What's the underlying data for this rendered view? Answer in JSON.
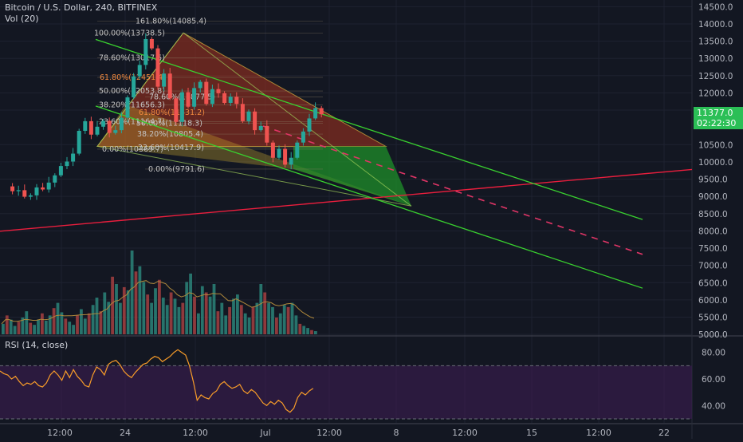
{
  "header": {
    "title": "Bitcoin / U.S. Dollar, 240, BITFINEX",
    "volume_label": "Vol (20)",
    "rsi_label": "RSI (14, close)"
  },
  "price_tags": {
    "last_price": "11377.0",
    "countdown": "02:22:30"
  },
  "colors": {
    "background": "#131722",
    "up": "#26a69a",
    "down": "#ef5350",
    "channel": "#39d12f",
    "trend": "#e91e3d",
    "fib_text": "#f0883e",
    "rsi_line": "#f89c29",
    "rsi_band": "#3c1d52"
  },
  "chart_data": [
    {
      "type": "candlestick",
      "title": "Bitcoin / U.S. Dollar, 240, BITFINEX",
      "y_axis_labels": [
        "14500.0",
        "14000.0",
        "13500.0",
        "13000.0",
        "12500.0",
        "12000.0",
        "11500.0",
        "10500.0",
        "10000.0",
        "9500.0",
        "9000.0",
        "8500.0",
        "8000.0",
        "7500.0",
        "7000.0",
        "6500.0",
        "6000.0",
        "5500.0",
        "5000.0"
      ],
      "x_axis_labels": [
        "12:00",
        "24",
        "12:00",
        "Jul",
        "12:00",
        "8",
        "12:00",
        "15",
        "12:00",
        "22"
      ],
      "ylim": [
        4980,
        14600
      ],
      "close_path": [
        9290,
        9150,
        9180,
        8990,
        9030,
        9260,
        9200,
        9400,
        9610,
        9880,
        10010,
        10240,
        10900,
        11180,
        10790,
        11020,
        11190,
        10840,
        10920,
        11280,
        11870,
        12480,
        12810,
        13560,
        13290,
        12180,
        12560,
        11840,
        11160,
        12020,
        11600,
        12140,
        12320,
        11680,
        12110,
        11990,
        11710,
        11890,
        11680,
        11180,
        11460,
        10920,
        11040,
        10560,
        10120,
        10380,
        9920,
        10120,
        10560,
        10880,
        11260,
        11560,
        11380
      ],
      "channel_upper": {
        "from": [
          0,
          13550
        ],
        "to": [
          48,
          8330
        ]
      },
      "channel_lower": {
        "from": [
          0,
          11620
        ],
        "to": [
          48,
          6340
        ]
      },
      "trend_line": {
        "from": [
          0,
          7990
        ],
        "to": [
          52,
          9780
        ]
      },
      "projection": {
        "from": [
          18.5,
          11040
        ],
        "to": [
          48,
          7320
        ]
      },
      "fib_upper": [
        {
          "label": "161.80%(14085.4)",
          "value": 14085.4
        },
        {
          "label": "100.00%(13738.5)",
          "value": 13738.5
        },
        {
          "label": "78.60%(13017.5)",
          "value": 13017.5
        },
        {
          "label": "61.80%(12451.4)",
          "value": 12451.4
        },
        {
          "label": "50.00%(12053.8)",
          "value": 12053.8
        },
        {
          "label": "38.20%(11656.3)",
          "value": 11656.3
        },
        {
          "label": "23.60%(11164.7)",
          "value": 11164.7
        },
        {
          "label": "0.00%(10369.7)",
          "value": 10369.7
        }
      ],
      "fib_lower": [
        {
          "label": "78.60%(11877.5)",
          "value": 11877.5
        },
        {
          "label": "61.80%(11431.2)",
          "value": 11431.2
        },
        {
          "label": "50.00%(11118.3)",
          "value": 11118.3
        },
        {
          "label": "38.20%(10805.4)",
          "value": 10805.4
        },
        {
          "label": "23.60%(10417.9)",
          "value": 10417.9
        },
        {
          "label": "0.00%(9791.6)",
          "value": 9791.6
        }
      ]
    },
    {
      "type": "bar",
      "title": "Vol (20)",
      "values": [
        10,
        18,
        14,
        8,
        12,
        16,
        22,
        11,
        9,
        14,
        20,
        13,
        18,
        25,
        30,
        21,
        15,
        12,
        9,
        18,
        24,
        15,
        20,
        28,
        35,
        22,
        40,
        31,
        55,
        48,
        30,
        45,
        42,
        80,
        60,
        65,
        50,
        38,
        30,
        44,
        52,
        35,
        28,
        40,
        34,
        26,
        30,
        50,
        58,
        36,
        20,
        46,
        40,
        36,
        48,
        22,
        30,
        18,
        26,
        34,
        38,
        28,
        20,
        16,
        26,
        30,
        48,
        40,
        30,
        26,
        16,
        20,
        28,
        26,
        30,
        18,
        10,
        8,
        6,
        4,
        3
      ],
      "x_axis_labels": [
        "12:00",
        "24",
        "12:00",
        "Jul",
        "12:00",
        "8",
        "12:00",
        "15",
        "12:00",
        "22"
      ]
    },
    {
      "type": "line",
      "title": "RSI (14, close)",
      "y_axis_labels": [
        "80.00",
        "60.00",
        "40.00"
      ],
      "ylim": [
        27,
        93
      ],
      "bands": [
        30,
        70
      ],
      "values": [
        66,
        64,
        63,
        60,
        62,
        58,
        55,
        57,
        56,
        58,
        55,
        54,
        57,
        63,
        66,
        63,
        59,
        66,
        61,
        67,
        62,
        59,
        55,
        54,
        63,
        69,
        67,
        63,
        71,
        73,
        74,
        71,
        66,
        63,
        61,
        65,
        68,
        71,
        72,
        75,
        77,
        76,
        73,
        75,
        77,
        80,
        82,
        80,
        78,
        70,
        58,
        44,
        48,
        46,
        45,
        49,
        51,
        56,
        58,
        55,
        53,
        54,
        56,
        51,
        49,
        52,
        50,
        46,
        42,
        40,
        43,
        41,
        44,
        42,
        37,
        35,
        38,
        46,
        50,
        48,
        51,
        53
      ]
    }
  ]
}
